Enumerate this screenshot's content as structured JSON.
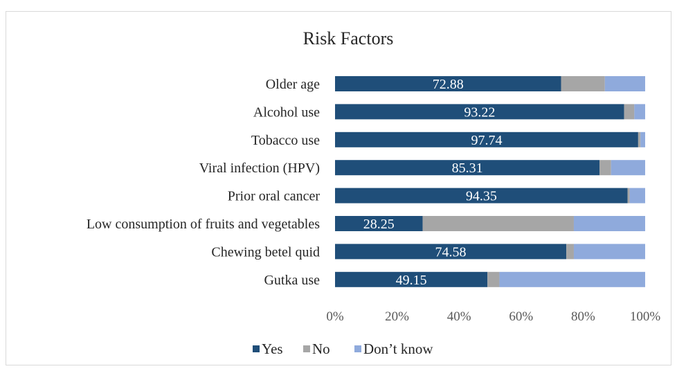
{
  "chart_data": {
    "type": "bar",
    "orientation": "horizontal",
    "stacked": "percent",
    "title": "Risk Factors",
    "categories": [
      "Older age",
      "Alcohol use",
      "Tobacco use",
      "Viral infection (HPV)",
      "Prior oral cancer",
      "Low consumption of fruits and vegetables",
      "Chewing betel quid",
      "Gutka use"
    ],
    "series": [
      {
        "name": "Yes",
        "color": "#1f4e79",
        "values": [
          72.88,
          93.22,
          97.74,
          85.31,
          94.35,
          28.25,
          74.58,
          49.15
        ]
      },
      {
        "name": "No",
        "color": "#a6a6a6",
        "values": [
          14.12,
          3.28,
          0.76,
          3.69,
          0.65,
          48.75,
          2.42,
          3.85
        ]
      },
      {
        "name": "Don’t know",
        "color": "#8faadc",
        "values": [
          13.0,
          3.5,
          1.5,
          11.0,
          5.0,
          23.0,
          23.0,
          47.0
        ]
      }
    ],
    "data_labels_series": "Yes",
    "x_ticks": [
      "0%",
      "20%",
      "40%",
      "60%",
      "80%",
      "100%"
    ],
    "xlim": [
      0,
      100
    ],
    "grid": false,
    "legend_position": "bottom"
  }
}
